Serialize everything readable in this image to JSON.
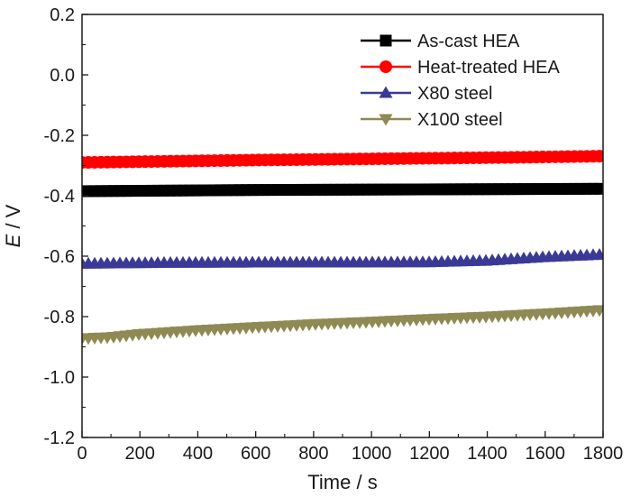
{
  "chart_data": {
    "type": "line",
    "title": "",
    "xlabel": "Time / s",
    "ylabel": {
      "var": "E",
      "unit": " / V"
    },
    "xlim": [
      0,
      1800
    ],
    "ylim": [
      -1.2,
      0.2
    ],
    "xticks": [
      0,
      200,
      400,
      600,
      800,
      1000,
      1200,
      1400,
      1600,
      1800
    ],
    "xtick_labels": [
      "0",
      "200",
      "400",
      "600",
      "800",
      "1000",
      "1200",
      "1400",
      "1600",
      "1800"
    ],
    "yticks": [
      -1.2,
      -1.0,
      -0.8,
      -0.6,
      -0.4,
      -0.2,
      0.0,
      0.2
    ],
    "ytick_labels": [
      "-1.2",
      "-1.0",
      "-0.8",
      "-0.6",
      "-0.4",
      "-0.2",
      "0.0",
      "0.2"
    ],
    "grid": false,
    "legend_position": "top-right",
    "series": [
      {
        "name": "As-cast HEA",
        "color": "#000000",
        "marker": "square",
        "x": [
          0,
          300,
          600,
          900,
          1200,
          1500,
          1800
        ],
        "y": [
          -0.385,
          -0.383,
          -0.381,
          -0.38,
          -0.379,
          -0.378,
          -0.377
        ]
      },
      {
        "name": "Heat-treated HEA",
        "color": "#ff0000",
        "marker": "circle",
        "x": [
          0,
          300,
          600,
          900,
          1200,
          1500,
          1800
        ],
        "y": [
          -0.29,
          -0.286,
          -0.282,
          -0.279,
          -0.276,
          -0.273,
          -0.269
        ]
      },
      {
        "name": "X80 steel",
        "color": "#3a3a96",
        "marker": "triangle-up",
        "x": [
          0,
          300,
          600,
          900,
          1200,
          1400,
          1600,
          1800
        ],
        "y": [
          -0.625,
          -0.622,
          -0.621,
          -0.621,
          -0.62,
          -0.615,
          -0.603,
          -0.595
        ]
      },
      {
        "name": "X100 steel",
        "color": "#8f8a54",
        "marker": "triangle-down",
        "x": [
          0,
          100,
          200,
          400,
          600,
          800,
          1000,
          1200,
          1400,
          1600,
          1800
        ],
        "y": [
          -0.872,
          -0.868,
          -0.858,
          -0.845,
          -0.835,
          -0.825,
          -0.817,
          -0.808,
          -0.8,
          -0.79,
          -0.778
        ]
      }
    ]
  }
}
